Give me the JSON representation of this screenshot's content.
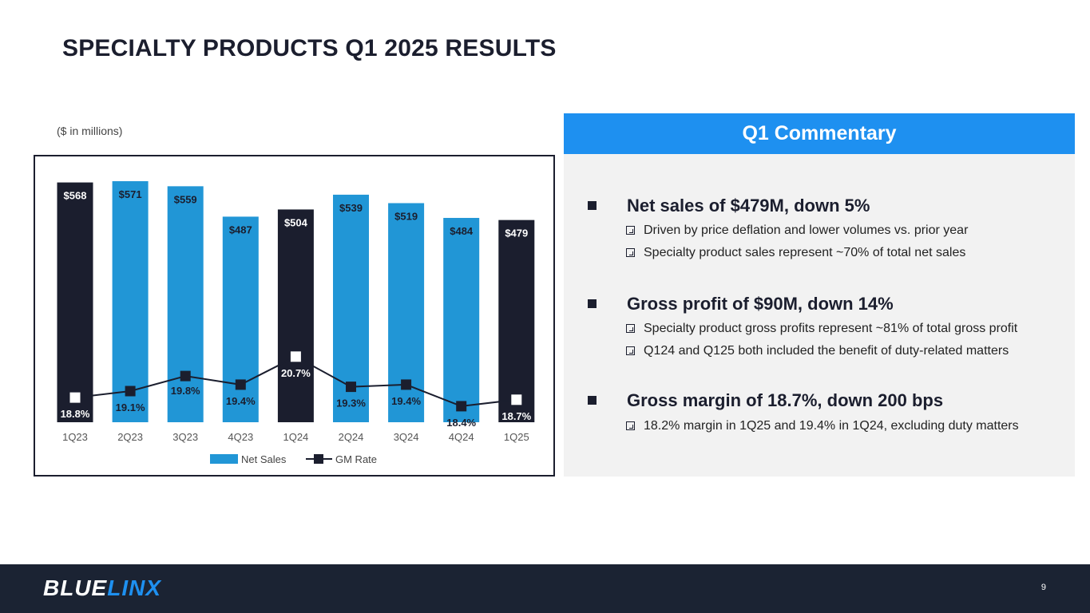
{
  "page": {
    "title": "SPECIALTY PRODUCTS Q1 2025 RESULTS",
    "units_note": "($ in millions)",
    "page_number": "9"
  },
  "brand": {
    "logo_part1": "BLUE",
    "logo_part2": "LINX",
    "accent": "#1e90f0",
    "dark": "#1b1e2e"
  },
  "chart_data": {
    "type": "bar",
    "categories": [
      "1Q23",
      "2Q23",
      "3Q23",
      "4Q23",
      "1Q24",
      "2Q24",
      "3Q24",
      "4Q24",
      "1Q25"
    ],
    "series": [
      {
        "name": "Net Sales",
        "values": [
          568,
          571,
          559,
          487,
          504,
          539,
          519,
          484,
          479
        ],
        "labels": [
          "$568",
          "$571",
          "$559",
          "$487",
          "$504",
          "$539",
          "$519",
          "$484",
          "$479"
        ]
      },
      {
        "name": "GM Rate",
        "type": "line",
        "values": [
          18.8,
          19.1,
          19.8,
          19.4,
          20.7,
          19.3,
          19.4,
          18.4,
          18.7
        ],
        "labels": [
          "18.8%",
          "19.1%",
          "19.8%",
          "19.4%",
          "20.7%",
          "19.3%",
          "19.4%",
          "18.4%",
          "18.7%"
        ]
      }
    ],
    "highlight_categories": [
      "1Q23",
      "1Q24",
      "1Q25"
    ],
    "colors": {
      "bar": "#2196d6",
      "bar_highlight": "#1b1e2e",
      "line": "#1b1e2e",
      "marker_on_dark": "#ffffff"
    },
    "legend": [
      "Net Sales",
      "GM Rate"
    ],
    "legend_position": "bottom",
    "grid": false
  },
  "commentary": {
    "header": "Q1 Commentary",
    "sections": [
      {
        "heading": "Net sales of $479M, down 5%",
        "items": [
          "Driven by price deflation and lower volumes vs. prior year",
          "Specialty product sales represent ~70% of total net sales"
        ]
      },
      {
        "heading": "Gross profit of $90M, down 14%",
        "items": [
          "Specialty product gross profits represent ~81% of total gross profit",
          "Q124 and Q125 both included the benefit of duty-related matters"
        ]
      },
      {
        "heading": "Gross margin of 18.7%, down 200 bps",
        "items": [
          "18.2% margin in 1Q25 and 19.4% in 1Q24, excluding duty matters"
        ]
      }
    ]
  }
}
